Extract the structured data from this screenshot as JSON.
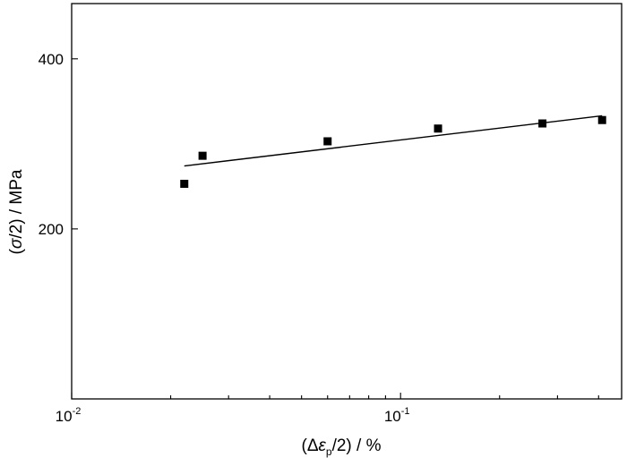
{
  "chart_data": {
    "type": "scatter",
    "x_scale": "log",
    "xlim": [
      0.01,
      0.47
    ],
    "ylim": [
      0,
      465
    ],
    "x_ticks": [
      {
        "value": 0.01,
        "base": "10",
        "exp": "-2"
      },
      {
        "value": 0.1,
        "base": "10",
        "exp": "-1"
      }
    ],
    "y_ticks": [
      {
        "value": 200,
        "label": "200"
      },
      {
        "value": 400,
        "label": "400"
      }
    ],
    "xlabel": {
      "open": "(Δ",
      "symbol": "ε",
      "sub": "p",
      "close": "/2) / %"
    },
    "ylabel": {
      "open": "(",
      "symbol": "σ",
      "close": "/2) / MPa"
    },
    "grid": false,
    "legend": "none",
    "marker": "square",
    "color": "#000000",
    "points": [
      {
        "x": 0.022,
        "y": 253
      },
      {
        "x": 0.025,
        "y": 286
      },
      {
        "x": 0.06,
        "y": 303
      },
      {
        "x": 0.13,
        "y": 318
      },
      {
        "x": 0.27,
        "y": 324
      },
      {
        "x": 0.41,
        "y": 328
      }
    ],
    "fit_line": {
      "type": "power-law",
      "from": {
        "x": 0.022,
        "y": 274
      },
      "to": {
        "x": 0.41,
        "y": 333
      }
    }
  }
}
